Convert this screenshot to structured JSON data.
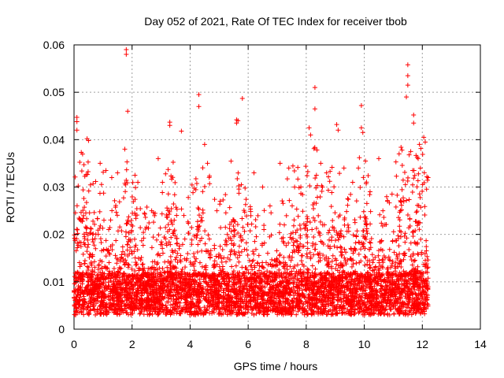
{
  "chart_data": {
    "type": "scatter",
    "title": "Day 052 of 2021, Rate Of TEC Index for receiver tbob",
    "xlabel": "GPS time / hours",
    "ylabel": "ROTI / TECUs",
    "xlim": [
      0,
      14
    ],
    "ylim": [
      0,
      0.06
    ],
    "grid": true,
    "xticks": [
      "0",
      "2",
      "4",
      "6",
      "8",
      "10",
      "12",
      "14"
    ],
    "yticks": [
      "0",
      "0.01",
      "0.02",
      "0.03",
      "0.04",
      "0.05",
      "0.06"
    ],
    "marker": "+",
    "series_color": "#ff0000",
    "x_range_observed": [
      0,
      12.2
    ],
    "series": [
      {
        "name": "ROTI",
        "points": [
          [
            1.8,
            0.059
          ],
          [
            1.8,
            0.058
          ],
          [
            1.85,
            0.046
          ],
          [
            4.3,
            0.0495
          ],
          [
            4.3,
            0.047
          ],
          [
            5.8,
            0.0487
          ],
          [
            8.3,
            0.051
          ],
          [
            8.3,
            0.0465
          ],
          [
            9.9,
            0.0472
          ],
          [
            11.5,
            0.0558
          ],
          [
            11.5,
            0.0535
          ],
          [
            11.5,
            0.0515
          ],
          [
            11.45,
            0.049
          ],
          [
            11.7,
            0.0452
          ],
          [
            11.7,
            0.0435
          ],
          [
            0.1,
            0.0447
          ],
          [
            0.1,
            0.0438
          ],
          [
            0.1,
            0.042
          ],
          [
            0.45,
            0.0402
          ],
          [
            0.5,
            0.0398
          ],
          [
            3.3,
            0.0437
          ],
          [
            3.3,
            0.043
          ],
          [
            5.6,
            0.0442
          ],
          [
            5.6,
            0.0435
          ],
          [
            5.65,
            0.044
          ],
          [
            8.1,
            0.0425
          ],
          [
            8.15,
            0.041
          ],
          [
            9.05,
            0.0432
          ],
          [
            9.1,
            0.042
          ],
          [
            9.9,
            0.0425
          ],
          [
            9.95,
            0.0415
          ],
          [
            12.05,
            0.0405
          ],
          [
            12.1,
            0.0395
          ],
          [
            10.5,
            0.036
          ],
          [
            11.2,
            0.037
          ],
          [
            11.3,
            0.0378
          ],
          [
            11.6,
            0.0375
          ],
          [
            1.75,
            0.038
          ],
          [
            2.9,
            0.036
          ],
          [
            3.7,
            0.0418
          ],
          [
            4.5,
            0.039
          ],
          [
            4.6,
            0.035
          ],
          [
            6.2,
            0.033
          ],
          [
            6.5,
            0.03
          ],
          [
            7.1,
            0.035
          ],
          [
            7.4,
            0.034
          ],
          [
            7.6,
            0.03
          ],
          [
            8.5,
            0.035
          ],
          [
            8.7,
            0.033
          ],
          [
            9.3,
            0.034
          ],
          [
            9.6,
            0.031
          ],
          [
            10.2,
            0.029
          ],
          [
            10.8,
            0.027
          ],
          [
            11.9,
            0.039
          ],
          [
            12.2,
            0.032
          ],
          [
            0.9,
            0.035
          ],
          [
            1.1,
            0.0335
          ],
          [
            1.3,
            0.032
          ],
          [
            1.5,
            0.033
          ],
          [
            2.1,
            0.0325
          ],
          [
            2.2,
            0.031
          ]
        ]
      }
    ]
  }
}
